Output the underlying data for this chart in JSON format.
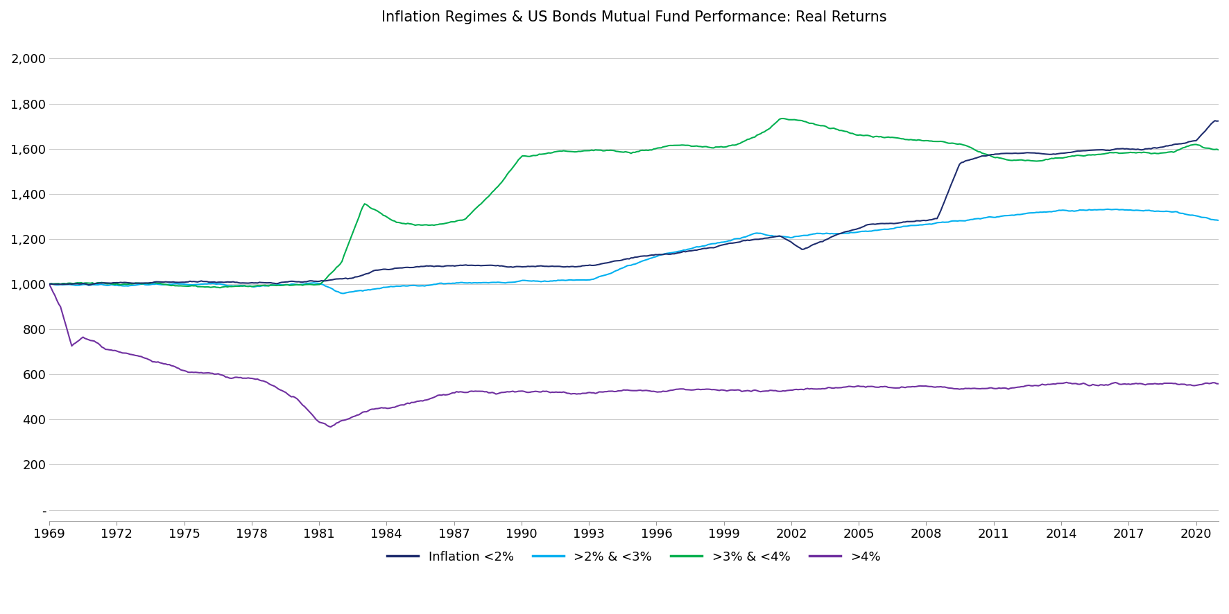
{
  "title": "Inflation Regimes & US Bonds Mutual Fund Performance: Real Returns",
  "colors": {
    "lt2": "#1F2D6E",
    "lt3": "#00B0F0",
    "lt4": "#00B050",
    "gt4": "#7030A0"
  },
  "legend_labels": [
    "Inflation <2%",
    ">2% & <3%",
    ">3% & <4%",
    ">4%"
  ],
  "yticks": [
    0,
    200,
    400,
    600,
    800,
    1000,
    1200,
    1400,
    1600,
    1800,
    2000
  ],
  "ytick_labels": [
    "-",
    "200",
    "400",
    "600",
    "800",
    "1,000",
    "1,200",
    "1,400",
    "1,600",
    "1,800",
    "2,000"
  ],
  "xticks": [
    1969,
    1972,
    1975,
    1978,
    1981,
    1984,
    1987,
    1990,
    1993,
    1996,
    1999,
    2002,
    2005,
    2008,
    2011,
    2014,
    2017,
    2020
  ],
  "ylim": [
    -50,
    2100
  ],
  "xlim": [
    1969,
    2021
  ],
  "navy_keypoints": [
    [
      1969.0,
      1000
    ],
    [
      1972.0,
      1000
    ],
    [
      1975.0,
      1000
    ],
    [
      1978.0,
      1000
    ],
    [
      1981.0,
      1000
    ],
    [
      1982.5,
      1010
    ],
    [
      1983.5,
      1050
    ],
    [
      1987.0,
      1070
    ],
    [
      1990.0,
      1070
    ],
    [
      1993.0,
      1070
    ],
    [
      1995.0,
      1100
    ],
    [
      1998.0,
      1130
    ],
    [
      1999.5,
      1160
    ],
    [
      2001.5,
      1190
    ],
    [
      2002.5,
      1130
    ],
    [
      2004.0,
      1200
    ],
    [
      2005.5,
      1240
    ],
    [
      2007.5,
      1260
    ],
    [
      2008.5,
      1270
    ],
    [
      2009.5,
      1520
    ],
    [
      2010.5,
      1550
    ],
    [
      2012.0,
      1560
    ],
    [
      2013.5,
      1570
    ],
    [
      2015.0,
      1580
    ],
    [
      2016.5,
      1590
    ],
    [
      2018.0,
      1590
    ],
    [
      2019.0,
      1610
    ],
    [
      2020.0,
      1620
    ],
    [
      2020.8,
      1700
    ]
  ],
  "cyan_keypoints": [
    [
      1969.0,
      1000
    ],
    [
      1972.0,
      1000
    ],
    [
      1975.0,
      1000
    ],
    [
      1978.0,
      1000
    ],
    [
      1981.0,
      1010
    ],
    [
      1982.0,
      960
    ],
    [
      1983.5,
      975
    ],
    [
      1987.0,
      1000
    ],
    [
      1990.0,
      1010
    ],
    [
      1993.0,
      1020
    ],
    [
      1995.0,
      1080
    ],
    [
      1997.0,
      1130
    ],
    [
      1999.0,
      1170
    ],
    [
      2000.5,
      1210
    ],
    [
      2002.0,
      1190
    ],
    [
      2002.5,
      1200
    ],
    [
      2004.0,
      1210
    ],
    [
      2006.0,
      1230
    ],
    [
      2008.0,
      1260
    ],
    [
      2009.0,
      1270
    ],
    [
      2011.0,
      1290
    ],
    [
      2013.0,
      1310
    ],
    [
      2015.5,
      1330
    ],
    [
      2017.5,
      1320
    ],
    [
      2019.0,
      1310
    ],
    [
      2020.0,
      1290
    ],
    [
      2020.8,
      1275
    ]
  ],
  "green_keypoints": [
    [
      1969.0,
      1000
    ],
    [
      1972.0,
      1005
    ],
    [
      1975.0,
      1005
    ],
    [
      1978.0,
      1005
    ],
    [
      1981.0,
      1005
    ],
    [
      1982.0,
      1100
    ],
    [
      1983.0,
      1360
    ],
    [
      1984.5,
      1270
    ],
    [
      1986.0,
      1260
    ],
    [
      1987.5,
      1290
    ],
    [
      1989.0,
      1450
    ],
    [
      1990.0,
      1580
    ],
    [
      1991.5,
      1590
    ],
    [
      1993.0,
      1600
    ],
    [
      1995.0,
      1590
    ],
    [
      1996.5,
      1610
    ],
    [
      1998.5,
      1620
    ],
    [
      1999.5,
      1630
    ],
    [
      2001.0,
      1710
    ],
    [
      2001.5,
      1760
    ],
    [
      2002.5,
      1760
    ],
    [
      2003.5,
      1740
    ],
    [
      2005.0,
      1700
    ],
    [
      2007.0,
      1695
    ],
    [
      2008.0,
      1680
    ],
    [
      2009.5,
      1655
    ],
    [
      2010.5,
      1610
    ],
    [
      2011.5,
      1580
    ],
    [
      2013.0,
      1575
    ],
    [
      2015.0,
      1590
    ],
    [
      2017.0,
      1600
    ],
    [
      2019.0,
      1610
    ],
    [
      2020.0,
      1640
    ],
    [
      2020.8,
      1620
    ]
  ],
  "purple_keypoints": [
    [
      1969.0,
      1000
    ],
    [
      1969.5,
      900
    ],
    [
      1970.0,
      720
    ],
    [
      1970.5,
      760
    ],
    [
      1971.0,
      740
    ],
    [
      1971.5,
      700
    ],
    [
      1972.0,
      700
    ],
    [
      1973.5,
      660
    ],
    [
      1975.0,
      610
    ],
    [
      1976.0,
      600
    ],
    [
      1977.0,
      590
    ],
    [
      1978.0,
      590
    ],
    [
      1979.0,
      570
    ],
    [
      1980.0,
      510
    ],
    [
      1981.0,
      400
    ],
    [
      1981.5,
      380
    ],
    [
      1982.0,
      410
    ],
    [
      1982.5,
      430
    ],
    [
      1983.5,
      460
    ],
    [
      1984.5,
      470
    ],
    [
      1985.5,
      490
    ],
    [
      1986.5,
      510
    ],
    [
      1987.5,
      520
    ],
    [
      1989.0,
      530
    ],
    [
      1990.0,
      545
    ],
    [
      1993.0,
      545
    ],
    [
      1996.0,
      545
    ],
    [
      2000.0,
      545
    ],
    [
      2005.0,
      545
    ],
    [
      2008.5,
      545
    ],
    [
      2009.5,
      530
    ],
    [
      2015.0,
      525
    ],
    [
      2018.0,
      520
    ],
    [
      2020.0,
      530
    ],
    [
      2020.8,
      530
    ]
  ]
}
